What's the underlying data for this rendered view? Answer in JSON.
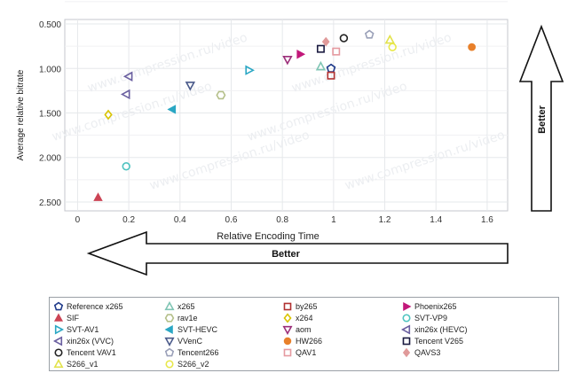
{
  "chart_data": {
    "type": "scatter",
    "xlabel": "Relative Encoding Time",
    "ylabel": "Average relative bitrate",
    "xlim": [
      -0.05,
      1.68
    ],
    "ylim": [
      2.6,
      0.45
    ],
    "y_axis_inverted": true,
    "xticks": [
      "0",
      "0.2",
      "0.4",
      "0.6",
      "0.8",
      "1",
      "1.2",
      "1.4",
      "1.6"
    ],
    "xtick_values": [
      0,
      0.2,
      0.4,
      0.6,
      0.8,
      1.0,
      1.2,
      1.4,
      1.6
    ],
    "yticks": [
      "0.500",
      "1.000",
      "1.500",
      "2.000",
      "2.500"
    ],
    "ytick_values": [
      0.5,
      1.0,
      1.5,
      2.0,
      2.5
    ],
    "grid": true,
    "legend_placement": "bottom",
    "watermark": "www.compression.ru/video",
    "annotations": {
      "better_horizontal": "Better",
      "better_vertical": "Better"
    },
    "series": [
      {
        "name": "Reference x265",
        "marker": "pentagon-open",
        "color": "#1f3a8a",
        "x": [
          0.99
        ],
        "y": [
          1.0
        ]
      },
      {
        "name": "x265",
        "marker": "triangle-up-open",
        "color": "#7fc5b4",
        "x": [
          0.95
        ],
        "y": [
          0.98
        ]
      },
      {
        "name": "by265",
        "marker": "square-open",
        "color": "#b03030",
        "x": [
          0.99
        ],
        "y": [
          1.08
        ]
      },
      {
        "name": "Phoenix265",
        "marker": "triangle-right",
        "color": "#c2187a",
        "x": [
          0.87
        ],
        "y": [
          0.84
        ]
      },
      {
        "name": "SIF",
        "marker": "triangle-up",
        "color": "#cc4455",
        "x": [
          0.08
        ],
        "y": [
          2.45
        ]
      },
      {
        "name": "rav1e",
        "marker": "hexagon-open",
        "color": "#b5c08a",
        "x": [
          0.56
        ],
        "y": [
          1.3
        ]
      },
      {
        "name": "x264",
        "marker": "diamond-open",
        "color": "#d9c400",
        "x": [
          0.12
        ],
        "y": [
          1.52
        ]
      },
      {
        "name": "SVT-VP9",
        "marker": "circle-open",
        "color": "#4fc3c0",
        "x": [
          0.19
        ],
        "y": [
          2.1
        ]
      },
      {
        "name": "SVT-AV1",
        "marker": "triangle-right-open",
        "color": "#2aa7c4",
        "x": [
          0.67
        ],
        "y": [
          1.02
        ]
      },
      {
        "name": "SVT-HEVC",
        "marker": "triangle-left",
        "color": "#2aa7c4",
        "x": [
          0.37
        ],
        "y": [
          1.46
        ]
      },
      {
        "name": "aom",
        "marker": "triangle-down-open",
        "color": "#9c2f7a",
        "x": [
          0.82
        ],
        "y": [
          0.9
        ]
      },
      {
        "name": "xin26x (HEVC)",
        "marker": "triangle-left-open",
        "color": "#6a5fa0",
        "x": [
          0.2
        ],
        "y": [
          1.09
        ]
      },
      {
        "name": "xin26x (VVC)",
        "marker": "triangle-left-open",
        "color": "#6a5fa0",
        "x": [
          0.19
        ],
        "y": [
          1.29
        ]
      },
      {
        "name": "VVenC",
        "marker": "triangle-down-open",
        "color": "#4a5a8a",
        "x": [
          0.44
        ],
        "y": [
          1.19
        ]
      },
      {
        "name": "HW266",
        "marker": "circle",
        "color": "#e8802a",
        "x": [
          1.54
        ],
        "y": [
          0.76
        ]
      },
      {
        "name": "Tencent V265",
        "marker": "square-open",
        "color": "#1a1a40",
        "x": [
          0.95
        ],
        "y": [
          0.78
        ]
      },
      {
        "name": "Tencent VAV1",
        "marker": "circle-open",
        "color": "#222222",
        "x": [
          1.04
        ],
        "y": [
          0.66
        ]
      },
      {
        "name": "Tencent266",
        "marker": "pentagon-open",
        "color": "#9aa0b8",
        "x": [
          1.14
        ],
        "y": [
          0.62
        ]
      },
      {
        "name": "QAV1",
        "marker": "square-open",
        "color": "#e59aa0",
        "x": [
          1.01
        ],
        "y": [
          0.81
        ]
      },
      {
        "name": "QAVS3",
        "marker": "diamond",
        "color": "#e09a9a",
        "x": [
          0.97
        ],
        "y": [
          0.7
        ]
      },
      {
        "name": "S266_v1",
        "marker": "triangle-up-open",
        "color": "#e2e24a",
        "x": [
          1.22
        ],
        "y": [
          0.68
        ]
      },
      {
        "name": "S266_v2",
        "marker": "circle-open",
        "color": "#e8e84a",
        "x": [
          1.23
        ],
        "y": [
          0.76
        ]
      }
    ]
  }
}
